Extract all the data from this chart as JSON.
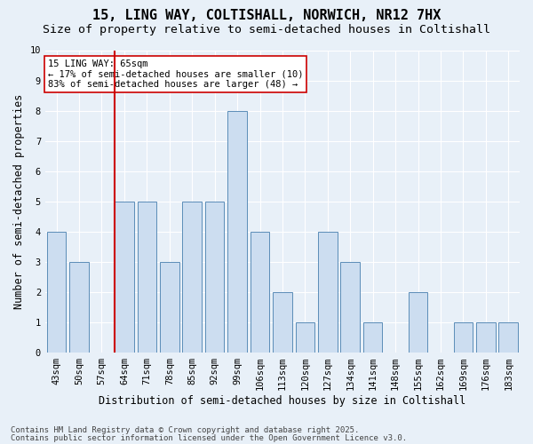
{
  "title_line1": "15, LING WAY, COLTISHALL, NORWICH, NR12 7HX",
  "title_line2": "Size of property relative to semi-detached houses in Coltishall",
  "categories": [
    "43sqm",
    "50sqm",
    "57sqm",
    "64sqm",
    "71sqm",
    "78sqm",
    "85sqm",
    "92sqm",
    "99sqm",
    "106sqm",
    "113sqm",
    "120sqm",
    "127sqm",
    "134sqm",
    "141sqm",
    "148sqm",
    "155sqm",
    "162sqm",
    "169sqm",
    "176sqm",
    "183sqm"
  ],
  "values": [
    4,
    3,
    0,
    5,
    5,
    3,
    5,
    5,
    8,
    4,
    2,
    1,
    4,
    3,
    1,
    0,
    2,
    0,
    1,
    1,
    1
  ],
  "bar_color": "#ccddf0",
  "bar_edge_color": "#5b8db8",
  "background_color": "#e8f0f8",
  "grid_color": "#ffffff",
  "property_line_color": "#cc0000",
  "property_line_index": 3,
  "annotation_text_line1": "15 LING WAY: 65sqm",
  "annotation_text_line2": "← 17% of semi-detached houses are smaller (10)",
  "annotation_text_line3": "83% of semi-detached houses are larger (48) →",
  "annotation_box_facecolor": "#ffffff",
  "annotation_box_edgecolor": "#cc0000",
  "xlabel": "Distribution of semi-detached houses by size in Coltishall",
  "ylabel": "Number of semi-detached properties",
  "ylim": [
    0,
    10
  ],
  "yticks": [
    0,
    1,
    2,
    3,
    4,
    5,
    6,
    7,
    8,
    9,
    10
  ],
  "footer_line1": "Contains HM Land Registry data © Crown copyright and database right 2025.",
  "footer_line2": "Contains public sector information licensed under the Open Government Licence v3.0.",
  "title_fontsize": 11,
  "subtitle_fontsize": 9.5,
  "axis_label_fontsize": 8.5,
  "tick_fontsize": 7.5,
  "annotation_fontsize": 7.5,
  "footer_fontsize": 6.5
}
